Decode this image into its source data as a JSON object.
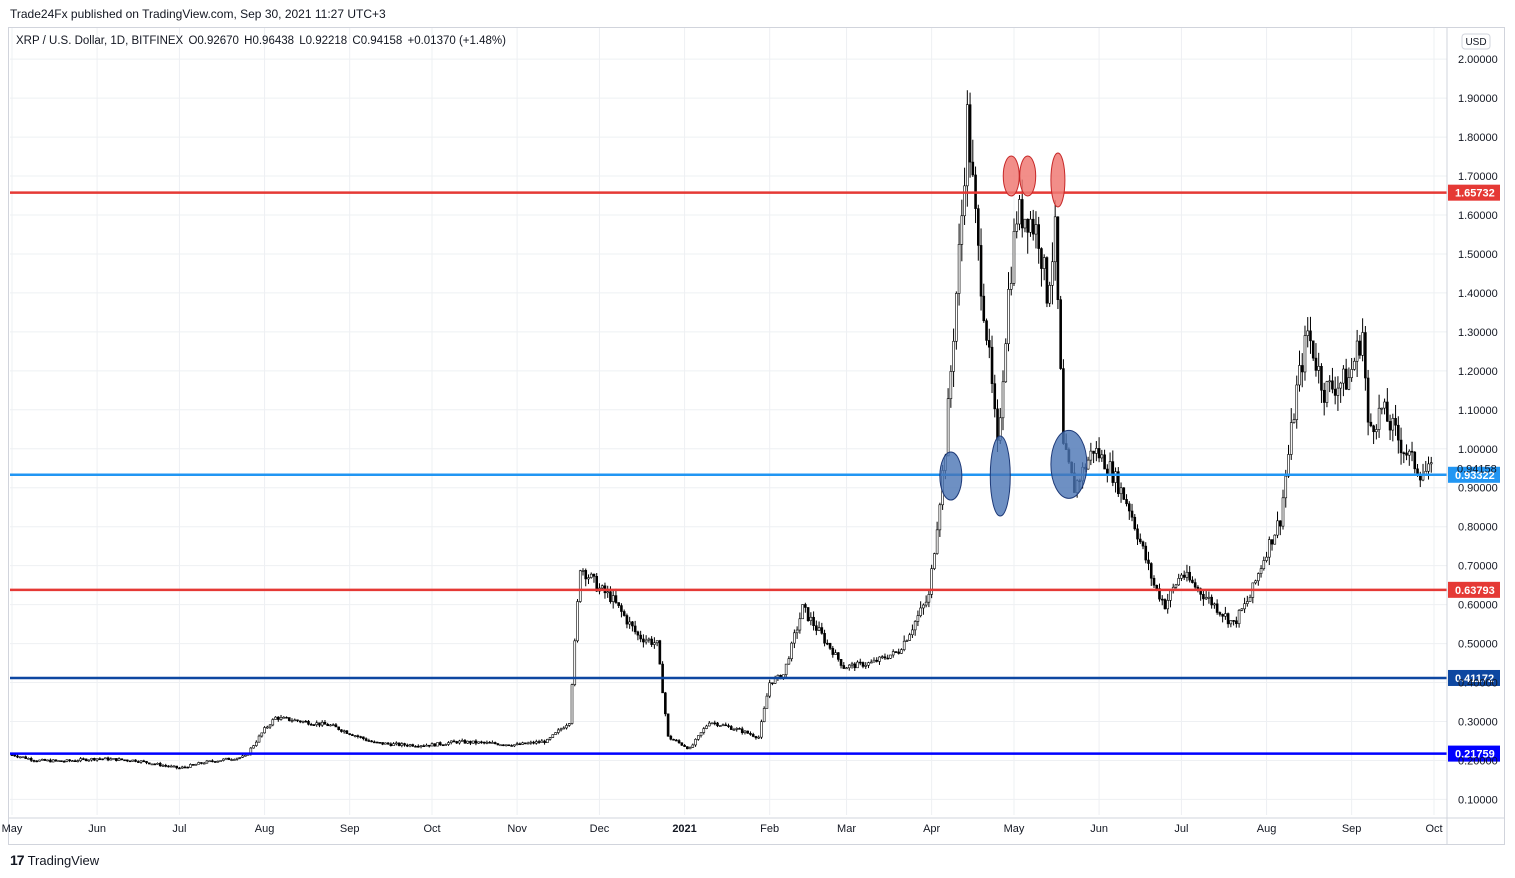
{
  "header": {
    "publisher": "Trade24Fx published on TradingView.com, Sep 30, 2021 11:27 UTC+3"
  },
  "legend": {
    "symbol": "XRP / U.S. Dollar, 1D, BITFINEX",
    "open": "O0.92670",
    "high": "H0.96438",
    "low": "L0.92218",
    "close": "C0.94158",
    "change": "+0.01370 (+1.48%)"
  },
  "currency_button": "USD",
  "footer": {
    "brand": "TradingView",
    "logo": "17"
  },
  "colors": {
    "red_line": "#e53935",
    "light_blue_line": "#2196f3",
    "dark_blue_line": "#0d47a1",
    "blue_line": "#0000ff",
    "red_marker": "#f07a74",
    "blue_marker": "#4a74b4",
    "candle": "#000000"
  },
  "chart_data": {
    "type": "candlestick",
    "ylim": [
      0.06,
      2.08
    ],
    "y_ticks": [
      "0.10000",
      "0.20000",
      "0.30000",
      "0.40000",
      "0.50000",
      "0.60000",
      "0.70000",
      "0.80000",
      "0.90000",
      "1.00000",
      "1.10000",
      "1.20000",
      "1.30000",
      "1.40000",
      "1.50000",
      "1.60000",
      "1.70000",
      "1.80000",
      "1.90000",
      "2.00000"
    ],
    "x_ticks": [
      {
        "label": "May",
        "date": "2020-05-01"
      },
      {
        "label": "Jun",
        "date": "2020-06-01"
      },
      {
        "label": "Jul",
        "date": "2020-07-01"
      },
      {
        "label": "Aug",
        "date": "2020-08-01"
      },
      {
        "label": "Sep",
        "date": "2020-09-01"
      },
      {
        "label": "Oct",
        "date": "2020-10-01"
      },
      {
        "label": "Nov",
        "date": "2020-11-01"
      },
      {
        "label": "Dec",
        "date": "2020-12-01"
      },
      {
        "label": "2021",
        "date": "2021-01-01"
      },
      {
        "label": "Feb",
        "date": "2021-02-01"
      },
      {
        "label": "Mar",
        "date": "2021-03-01"
      },
      {
        "label": "Apr",
        "date": "2021-04-01"
      },
      {
        "label": "May",
        "date": "2021-05-01"
      },
      {
        "label": "Jun",
        "date": "2021-06-01"
      },
      {
        "label": "Jul",
        "date": "2021-07-01"
      },
      {
        "label": "Aug",
        "date": "2021-08-01"
      },
      {
        "label": "Sep",
        "date": "2021-09-01"
      },
      {
        "label": "Oct",
        "date": "2021-10-01"
      }
    ],
    "x_range": [
      "2020-05-01",
      "2021-10-01"
    ],
    "price_path": [
      [
        "2020-05-01",
        0.215
      ],
      [
        "2020-05-10",
        0.2
      ],
      [
        "2020-05-20",
        0.198
      ],
      [
        "2020-06-01",
        0.205
      ],
      [
        "2020-06-15",
        0.2
      ],
      [
        "2020-07-01",
        0.18
      ],
      [
        "2020-07-10",
        0.195
      ],
      [
        "2020-07-25",
        0.21
      ],
      [
        "2020-08-01",
        0.28
      ],
      [
        "2020-08-05",
        0.31
      ],
      [
        "2020-08-15",
        0.3
      ],
      [
        "2020-08-25",
        0.29
      ],
      [
        "2020-09-01",
        0.27
      ],
      [
        "2020-09-10",
        0.245
      ],
      [
        "2020-09-20",
        0.24
      ],
      [
        "2020-10-01",
        0.24
      ],
      [
        "2020-10-10",
        0.248
      ],
      [
        "2020-10-20",
        0.245
      ],
      [
        "2020-11-01",
        0.24
      ],
      [
        "2020-11-12",
        0.25
      ],
      [
        "2020-11-20",
        0.3
      ],
      [
        "2020-11-24",
        0.7
      ],
      [
        "2020-12-01",
        0.64
      ],
      [
        "2020-12-05",
        0.62
      ],
      [
        "2020-12-15",
        0.52
      ],
      [
        "2020-12-22",
        0.5
      ],
      [
        "2020-12-26",
        0.26
      ],
      [
        "2021-01-03",
        0.23
      ],
      [
        "2021-01-10",
        0.3
      ],
      [
        "2021-01-20",
        0.28
      ],
      [
        "2021-01-28",
        0.26
      ],
      [
        "2021-02-01",
        0.4
      ],
      [
        "2021-02-06",
        0.42
      ],
      [
        "2021-02-13",
        0.59
      ],
      [
        "2021-02-20",
        0.52
      ],
      [
        "2021-02-28",
        0.44
      ],
      [
        "2021-03-10",
        0.45
      ],
      [
        "2021-03-20",
        0.48
      ],
      [
        "2021-03-31",
        0.62
      ],
      [
        "2021-04-06",
        1.0
      ],
      [
        "2021-04-12",
        1.6
      ],
      [
        "2021-04-14",
        1.85
      ],
      [
        "2021-04-18",
        1.5
      ],
      [
        "2021-04-21",
        1.3
      ],
      [
        "2021-04-25",
        1.0
      ],
      [
        "2021-04-29",
        1.4
      ],
      [
        "2021-05-02",
        1.6
      ],
      [
        "2021-05-06",
        1.6
      ],
      [
        "2021-05-10",
        1.55
      ],
      [
        "2021-05-13",
        1.4
      ],
      [
        "2021-05-16",
        1.55
      ],
      [
        "2021-05-19",
        1.0
      ],
      [
        "2021-05-23",
        0.9
      ],
      [
        "2021-05-30",
        1.0
      ],
      [
        "2021-06-05",
        0.95
      ],
      [
        "2021-06-12",
        0.85
      ],
      [
        "2021-06-21",
        0.65
      ],
      [
        "2021-06-25",
        0.6
      ],
      [
        "2021-07-01",
        0.68
      ],
      [
        "2021-07-10",
        0.62
      ],
      [
        "2021-07-20",
        0.55
      ],
      [
        "2021-07-26",
        0.62
      ],
      [
        "2021-08-01",
        0.74
      ],
      [
        "2021-08-06",
        0.82
      ],
      [
        "2021-08-12",
        1.15
      ],
      [
        "2021-08-16",
        1.3
      ],
      [
        "2021-08-22",
        1.15
      ],
      [
        "2021-08-31",
        1.18
      ],
      [
        "2021-09-05",
        1.3
      ],
      [
        "2021-09-07",
        1.05
      ],
      [
        "2021-09-12",
        1.1
      ],
      [
        "2021-09-20",
        1.0
      ],
      [
        "2021-09-26",
        0.94
      ],
      [
        "2021-09-30",
        0.9416
      ]
    ],
    "horizontal_levels": [
      {
        "value": 1.65732,
        "label": "1.65732",
        "color": "#e53935"
      },
      {
        "value": 0.93322,
        "label": "0.93322",
        "color": "#2196f3"
      },
      {
        "value": 0.63793,
        "label": "0.63793",
        "color": "#e53935"
      },
      {
        "value": 0.41172,
        "label": "0.41172",
        "color": "#0d47a1"
      },
      {
        "value": 0.21759,
        "label": "0.21759",
        "color": "#0000ff"
      }
    ],
    "last_price": {
      "value": 0.94158,
      "label": "0.94158"
    },
    "annotations": [
      {
        "shape": "ellipse",
        "color": "red",
        "date": "2021-04-30",
        "value": 1.7
      },
      {
        "shape": "ellipse",
        "color": "red",
        "date": "2021-05-06",
        "value": 1.7
      },
      {
        "shape": "ellipse",
        "color": "red",
        "date": "2021-05-17",
        "value": 1.69
      },
      {
        "shape": "ellipse",
        "color": "blue",
        "date": "2021-04-08",
        "value": 0.93
      },
      {
        "shape": "ellipse",
        "color": "blue",
        "date": "2021-04-26",
        "value": 0.93
      },
      {
        "shape": "ellipse",
        "color": "blue",
        "date": "2021-05-21",
        "value": 0.96
      }
    ]
  }
}
